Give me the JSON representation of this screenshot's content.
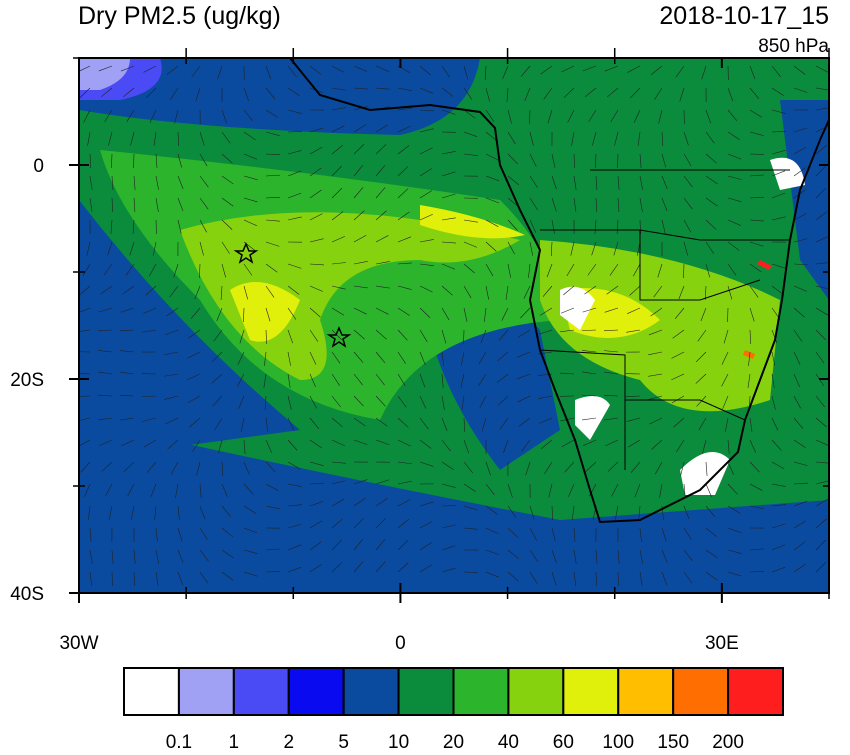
{
  "title": "Dry PM2.5 (ug/kg)",
  "time": "2018-10-17_15",
  "level": "850 hPa",
  "map": {
    "xlim": [
      -30,
      40
    ],
    "ylim": [
      -40,
      10
    ],
    "xticks": [
      {
        "value": -30,
        "label": "30W"
      },
      0,
      {
        "value": 30,
        "label": "30E"
      }
    ],
    "yticks": [
      0,
      {
        "value": -20,
        "label": "20S"
      },
      {
        "value": -40,
        "label": "40S"
      }
    ],
    "minor_xticks": [
      -20,
      -10,
      10,
      20,
      40
    ],
    "minor_yticks": [
      -10,
      -30,
      10
    ]
  },
  "colorbar": {
    "levels": [
      0.1,
      1,
      2,
      5,
      10,
      20,
      40,
      60,
      100,
      150,
      200
    ],
    "colors": [
      "#ffffff",
      "#a0a0f5",
      "#4b4bf5",
      "#0a0af0",
      "#0a4ba0",
      "#0a8c3c",
      "#2db42d",
      "#87d20f",
      "#e1f00a",
      "#ffbe00",
      "#ff6e00",
      "#ff1e1e"
    ]
  }
}
